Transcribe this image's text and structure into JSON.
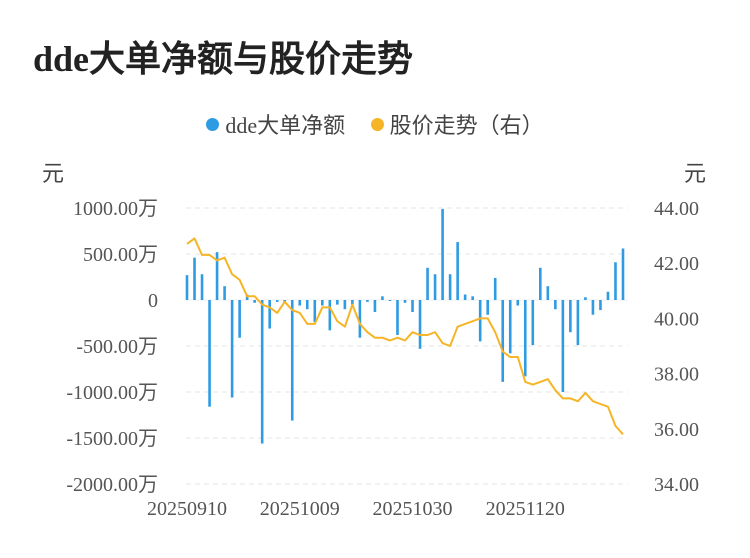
{
  "title": "dde大单净额与股价走势",
  "legend": [
    {
      "label": "dde大单净额",
      "color": "#2f9be3"
    },
    {
      "label": "股价走势（右）",
      "color": "#f5b526"
    }
  ],
  "units": {
    "left": "元",
    "right": "元"
  },
  "chart_data": {
    "type": "bar+line",
    "title": "dde大单净额与股价走势",
    "y_left": {
      "ylim": [
        -2000,
        1000
      ],
      "ticks": [
        1000,
        500,
        0,
        -500,
        -1000,
        -1500,
        -2000
      ],
      "tick_labels": [
        "1000.00万",
        "500.00万",
        "0",
        "-500.00万",
        "-1000.00万",
        "-1500.00万",
        "-2000.00万"
      ]
    },
    "y_right": {
      "ylim": [
        34,
        44
      ],
      "ticks": [
        44,
        42,
        40,
        38,
        36,
        34
      ],
      "tick_labels": [
        "44.00",
        "42.00",
        "40.00",
        "38.00",
        "36.00",
        "34.00"
      ]
    },
    "x_tick_labels": [
      {
        "label": "20250910",
        "index": 0
      },
      {
        "label": "20251009",
        "index": 15
      },
      {
        "label": "20251030",
        "index": 30
      },
      {
        "label": "20251120",
        "index": 45
      }
    ],
    "grid": true,
    "series": [
      {
        "name": "dde大单净额",
        "type": "bar",
        "axis": "left",
        "color": "#2f9be3",
        "values": [
          270,
          460,
          280,
          -1160,
          520,
          150,
          -1060,
          -410,
          60,
          -30,
          -1560,
          -310,
          -20,
          -30,
          -1310,
          -60,
          -100,
          -240,
          -60,
          -330,
          -50,
          -100,
          -50,
          -410,
          -20,
          -130,
          40,
          -10,
          -380,
          -30,
          -130,
          -530,
          350,
          280,
          990,
          280,
          630,
          60,
          40,
          -450,
          -160,
          240,
          -890,
          -580,
          -60,
          -830,
          -490,
          350,
          150,
          -100,
          -1000,
          -350,
          -490,
          30,
          -160,
          -110,
          90,
          410,
          560
        ]
      },
      {
        "name": "股价走势（右）",
        "type": "line",
        "axis": "right",
        "color": "#f5b526",
        "values": [
          42.7,
          42.9,
          42.3,
          42.3,
          42.1,
          42.2,
          41.6,
          41.4,
          40.8,
          40.8,
          40.5,
          40.4,
          40.2,
          40.6,
          40.3,
          40.2,
          39.8,
          39.8,
          40.4,
          40.4,
          39.9,
          39.7,
          40.5,
          39.8,
          39.5,
          39.3,
          39.3,
          39.2,
          39.3,
          39.2,
          39.5,
          39.4,
          39.4,
          39.5,
          39.1,
          39.0,
          39.7,
          39.8,
          39.9,
          40.0,
          40.0,
          39.5,
          38.8,
          38.6,
          38.6,
          37.7,
          37.6,
          37.7,
          37.8,
          37.4,
          37.1,
          37.1,
          37.0,
          37.3,
          37.0,
          36.9,
          36.8,
          36.1,
          35.8
        ]
      }
    ]
  }
}
